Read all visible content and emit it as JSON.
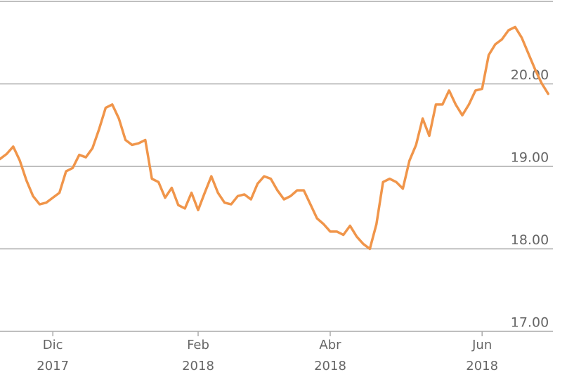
{
  "chart_data": {
    "type": "line",
    "categories": [
      null,
      null,
      null,
      null,
      null,
      null,
      null,
      null,
      "Dic 2017",
      null,
      null,
      null,
      null,
      null,
      null,
      null,
      null,
      null,
      null,
      null,
      null,
      null,
      null,
      null,
      null,
      null,
      null,
      null,
      null,
      null,
      "Feb 2018",
      null,
      null,
      null,
      null,
      null,
      null,
      null,
      null,
      null,
      null,
      null,
      null,
      null,
      null,
      null,
      null,
      null,
      null,
      null,
      "Abr 2018",
      null,
      null,
      null,
      null,
      null,
      null,
      null,
      null,
      null,
      null,
      null,
      null,
      null,
      null,
      null,
      null,
      null,
      null,
      null,
      null,
      null,
      null,
      "Jun 2018",
      null,
      null,
      null,
      null,
      null,
      null,
      null,
      null,
      null,
      null
    ],
    "series": [
      {
        "color": "#f0954a",
        "values": [
          19.09,
          19.15,
          19.24,
          19.07,
          18.83,
          18.64,
          18.54,
          18.56,
          18.62,
          18.68,
          18.94,
          18.98,
          19.14,
          19.11,
          19.22,
          19.45,
          19.71,
          19.75,
          19.58,
          19.32,
          19.26,
          19.28,
          19.32,
          18.85,
          18.81,
          18.62,
          18.74,
          18.53,
          18.49,
          18.68,
          18.47,
          18.68,
          18.88,
          18.68,
          18.56,
          18.54,
          18.64,
          18.66,
          18.6,
          18.79,
          18.88,
          18.85,
          18.71,
          18.6,
          18.64,
          18.71,
          18.71,
          18.54,
          18.37,
          18.3,
          18.21,
          18.21,
          18.17,
          18.28,
          18.15,
          18.06,
          18.0,
          18.3,
          18.81,
          18.85,
          18.81,
          18.73,
          19.07,
          19.26,
          19.58,
          19.37,
          19.75,
          19.75,
          19.92,
          19.75,
          19.62,
          19.75,
          19.92,
          19.94,
          20.35,
          20.48,
          20.54,
          20.65,
          20.69,
          20.56,
          20.37,
          20.18,
          20.01,
          19.88
        ]
      }
    ],
    "ylim": [
      17,
      21
    ],
    "yticks": [
      {
        "value": 17,
        "label": "17.00"
      },
      {
        "value": 18,
        "label": "18.00"
      },
      {
        "value": 19,
        "label": "19.00"
      },
      {
        "value": 20,
        "label": "20.00"
      }
    ],
    "grid": true
  }
}
